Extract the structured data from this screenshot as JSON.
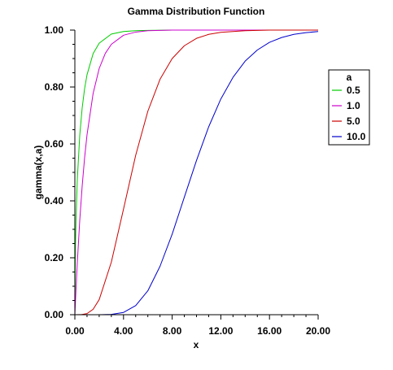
{
  "chart_data": {
    "type": "line",
    "title": "Gamma Distribution Function",
    "xlabel": "x",
    "ylabel": "gamma(x,a)",
    "xlim": [
      0,
      20
    ],
    "ylim": [
      0,
      1
    ],
    "x_ticks": [
      "0.00",
      "4.00",
      "8.00",
      "12.00",
      "16.00",
      "20.00"
    ],
    "y_ticks": [
      "0.00",
      "0.20",
      "0.40",
      "0.60",
      "0.80",
      "1.00"
    ],
    "grid": false,
    "legend_title": "a",
    "legend_position": "right",
    "series": [
      {
        "name": "0.5",
        "a": 0.5,
        "color": "#00cc00",
        "x": [
          0,
          0.05,
          0.1,
          0.2,
          0.4,
          0.6,
          0.8,
          1.0,
          1.5,
          2.0,
          3.0,
          4.0,
          5.0,
          6.0,
          8.0,
          20.0
        ],
        "y": [
          0,
          0.248,
          0.345,
          0.473,
          0.629,
          0.726,
          0.794,
          0.843,
          0.917,
          0.954,
          0.986,
          0.995,
          0.998,
          0.999,
          1.0,
          1.0
        ]
      },
      {
        "name": "1.0",
        "a": 1.0,
        "color": "#cc00cc",
        "x": [
          0,
          0.1,
          0.2,
          0.4,
          0.6,
          0.8,
          1.0,
          1.5,
          2.0,
          2.5,
          3.0,
          4.0,
          5.0,
          6.0,
          8.0,
          20.0
        ],
        "y": [
          0,
          0.095,
          0.181,
          0.33,
          0.451,
          0.551,
          0.632,
          0.777,
          0.865,
          0.918,
          0.95,
          0.982,
          0.993,
          0.998,
          1.0,
          1.0
        ]
      },
      {
        "name": "5.0",
        "a": 5.0,
        "color": "#cc0000",
        "x": [
          0,
          0.5,
          1.0,
          1.5,
          2.0,
          3.0,
          4.0,
          5.0,
          6.0,
          7.0,
          8.0,
          9.0,
          10.0,
          11.0,
          12.0,
          14.0,
          16.0,
          20.0
        ],
        "y": [
          0,
          0.0002,
          0.004,
          0.019,
          0.053,
          0.185,
          0.371,
          0.56,
          0.715,
          0.827,
          0.9,
          0.945,
          0.971,
          0.985,
          0.992,
          0.998,
          1.0,
          1.0
        ]
      },
      {
        "name": "10.0",
        "a": 10.0,
        "color": "#0000cc",
        "x": [
          0,
          2.0,
          3.0,
          4.0,
          5.0,
          6.0,
          7.0,
          8.0,
          9.0,
          10.0,
          11.0,
          12.0,
          13.0,
          14.0,
          15.0,
          16.0,
          17.0,
          18.0,
          19.0,
          20.0
        ],
        "y": [
          0,
          5e-05,
          0.001,
          0.008,
          0.032,
          0.084,
          0.17,
          0.283,
          0.413,
          0.542,
          0.66,
          0.758,
          0.834,
          0.891,
          0.93,
          0.957,
          0.974,
          0.985,
          0.991,
          0.995
        ]
      }
    ]
  }
}
